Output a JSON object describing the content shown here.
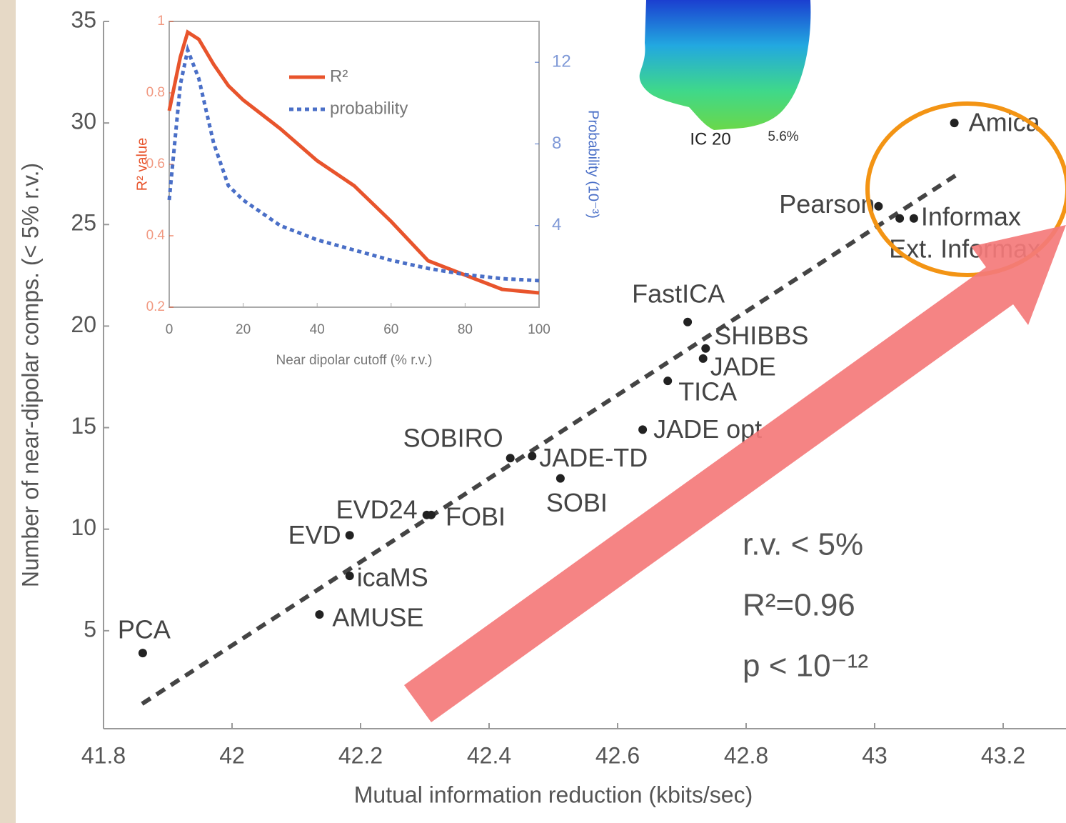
{
  "chart_data": [
    {
      "type": "scatter",
      "xlabel": "Mutual information reduction (kbits/sec)",
      "ylabel": "Number of near-dipolar comps. (< 5% r.v.)",
      "labels": [
        "PCA",
        "AMUSE",
        "icaMS",
        "EVD",
        "EVD24",
        "FOBI",
        "SOBIRO",
        "JADE-TD",
        "SOBI",
        "JADE opt",
        "TICA",
        "JADE",
        "SHIBBS",
        "FastICA",
        "Pearson",
        "Ext. Informax",
        "Informax",
        "Amica"
      ],
      "x": [
        41.861,
        42.136,
        42.183,
        42.183,
        42.303,
        42.31,
        42.433,
        42.467,
        42.511,
        42.639,
        42.678,
        42.733,
        42.737,
        42.709,
        43.006,
        43.039,
        43.061,
        43.124
      ],
      "values": [
        3.9,
        5.8,
        7.7,
        9.7,
        10.7,
        10.7,
        13.5,
        13.6,
        12.5,
        14.9,
        17.3,
        18.4,
        18.9,
        20.2,
        25.9,
        25.3,
        25.3,
        30.0
      ],
      "color": "#222222",
      "fit": {
        "x": [
          41.86,
          43.13
        ],
        "values": [
          1.4,
          27.5
        ],
        "color": "#444444"
      },
      "annotations": [
        "r.v. < 5%",
        "R²=0.96",
        "p < 10⁻¹²"
      ],
      "xlim": [
        41.8,
        43.2
      ],
      "xticks": [
        41.8,
        42,
        42.2,
        42.4,
        42.6,
        42.8,
        43,
        43.2
      ],
      "ylim": [
        0,
        35
      ],
      "yticks": [
        5,
        10,
        15,
        20,
        25,
        30,
        35
      ]
    },
    {
      "type": "line",
      "xlabel": "Near dipolar cutoff (% r.v.)",
      "ylabel": "R² value",
      "y2label": "Probability (10⁻³)",
      "x": [
        0,
        3,
        5,
        8,
        12,
        16,
        20,
        30,
        40,
        50,
        60,
        70,
        80,
        90,
        100
      ],
      "series": [
        {
          "name": "R²",
          "color": "#e8542c",
          "values": [
            0.75,
            0.9,
            0.97,
            0.95,
            0.88,
            0.82,
            0.78,
            0.7,
            0.61,
            0.54,
            0.44,
            0.33,
            0.29,
            0.25,
            0.24
          ]
        },
        {
          "name": "probability",
          "color": "#4a6fc7",
          "axis": "y2",
          "values": [
            5.25,
            10.9,
            12.6,
            11.2,
            8.05,
            5.95,
            5.25,
            4.0,
            3.3,
            2.8,
            2.3,
            1.9,
            1.6,
            1.4,
            1.3
          ]
        }
      ],
      "xlim": [
        0,
        100
      ],
      "xticks": [
        0,
        20,
        40,
        60,
        80,
        100
      ],
      "ylim": [
        0.2,
        1.0
      ],
      "yticks": [
        0.2,
        0.4,
        0.6,
        0.8,
        1.0
      ],
      "y2lim": [
        0,
        14
      ],
      "y2ticks": [
        4,
        8,
        12
      ]
    }
  ],
  "figure_labels": {
    "component": "IC 20",
    "variance": "5.6%"
  }
}
